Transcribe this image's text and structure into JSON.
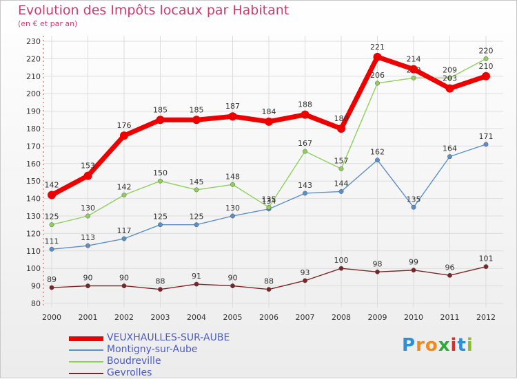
{
  "header": {
    "title": "Evolution des Impôts locaux par Habitant",
    "subtitle": "(en € et par an)"
  },
  "logo": {
    "letters": [
      "P",
      "r",
      "o",
      "x",
      "i",
      "t",
      "i"
    ],
    "colors": [
      "#2d8fd8",
      "#f08a1c",
      "#f08a1c",
      "#2fa83c",
      "#d92b2b",
      "#2d8fd8",
      "#8bbf2a"
    ]
  },
  "chart_data": {
    "type": "line",
    "x": [
      "2000",
      "2001",
      "2002",
      "2003",
      "2004",
      "2005",
      "2006",
      "2007",
      "2008",
      "2009",
      "2010",
      "2011",
      "2012"
    ],
    "ylim": [
      80,
      230
    ],
    "yticks": [
      "80",
      "90",
      "100",
      "110",
      "120",
      "130",
      "140",
      "150",
      "160",
      "170",
      "180",
      "190",
      "200",
      "210",
      "220",
      "230"
    ],
    "grid": true,
    "legend": "bottom-left",
    "series": [
      {
        "name": "VEUXHAULLES-SUR-AUBE",
        "values": [
          142,
          153,
          176,
          185,
          185,
          187,
          184,
          188,
          180,
          221,
          214,
          203,
          210
        ],
        "color": "#ee0000"
      },
      {
        "name": "Montigny-sur-Aube",
        "values": [
          111,
          113,
          117,
          125,
          125,
          130,
          134,
          143,
          144,
          162,
          135,
          164,
          171
        ],
        "color": "#5a8fc8"
      },
      {
        "name": "Boudreville",
        "values": [
          125,
          130,
          142,
          150,
          145,
          148,
          135,
          167,
          157,
          206,
          209,
          209,
          220
        ],
        "color": "#8fd05a"
      },
      {
        "name": "Gevrolles",
        "values": [
          89,
          90,
          90,
          88,
          91,
          90,
          88,
          93,
          100,
          98,
          99,
          96,
          101
        ],
        "color": "#7a2626"
      }
    ]
  }
}
